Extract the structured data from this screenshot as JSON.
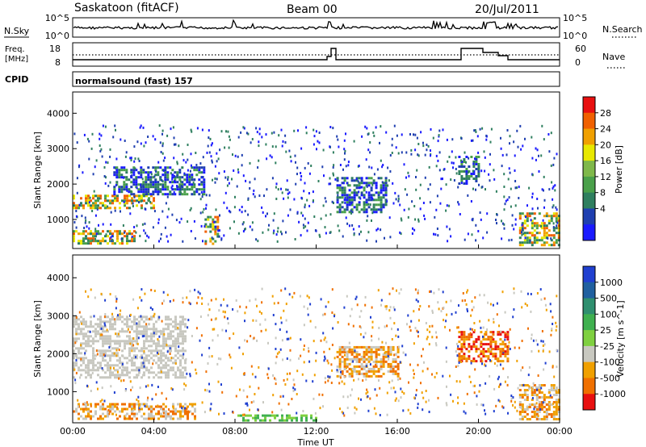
{
  "header": {
    "station": "Saskatoon (fitACF)",
    "beam": "Beam 00",
    "date": "20/Jul/2011"
  },
  "top_panels": {
    "nsky_label": "N.Sky",
    "nsky_ticks": [
      "10^5",
      "10^0"
    ],
    "nsearch_label": "N.Search",
    "nsearch_ticks": [
      "10^5",
      "10^0"
    ],
    "freq_label": "Freq.",
    "freq_unit": "[MHz]",
    "freq_ticks": [
      "18",
      "8"
    ],
    "nave_label": "Nave",
    "nave_ticks": [
      "60",
      "0"
    ],
    "cpid_label": "CPID",
    "cpid_value": "normalsound (fast) 157"
  },
  "chart_data": [
    {
      "type": "heatmap",
      "name": "power",
      "ylabel": "Slant Range [km]",
      "ylim": [
        180,
        4600
      ],
      "yticks": [
        "1000",
        "2000",
        "3000",
        "4000"
      ],
      "xticks": [
        "00:00",
        "04:00",
        "08:00",
        "12:00",
        "16:00",
        "20:00",
        "00:00"
      ],
      "xlim_hours": [
        0,
        24
      ],
      "colorbar": {
        "label": "Power [dB]",
        "ticks": [
          "4",
          "8",
          "12",
          "16",
          "20",
          "24",
          "28"
        ],
        "range": [
          0,
          30
        ],
        "colors": [
          "#1a1aff",
          "#1f3fb0",
          "#2f7f5f",
          "#4aa04a",
          "#7fb84a",
          "#e8e800",
          "#f0a000",
          "#f06000",
          "#e81010"
        ]
      },
      "echo_bands": [
        {
          "t": [
            0.0,
            4.0
          ],
          "range": [
            1300,
            1700
          ],
          "level": "high"
        },
        {
          "t": [
            2.0,
            6.5
          ],
          "range": [
            1700,
            2500
          ],
          "level": "mid"
        },
        {
          "t": [
            0.0,
            3.0
          ],
          "range": [
            300,
            700
          ],
          "level": "high"
        },
        {
          "t": [
            6.5,
            7.2
          ],
          "range": [
            300,
            1100
          ],
          "level": "high"
        },
        {
          "t": [
            13.0,
            15.5
          ],
          "range": [
            1200,
            2200
          ],
          "level": "mid"
        },
        {
          "t": [
            19.0,
            20.0
          ],
          "range": [
            2000,
            2800
          ],
          "level": "mid"
        },
        {
          "t": [
            22.0,
            24.0
          ],
          "range": [
            300,
            1200
          ],
          "level": "high"
        }
      ]
    },
    {
      "type": "heatmap",
      "name": "velocity",
      "ylabel": "Slant Range [km]",
      "ylim": [
        180,
        4600
      ],
      "yticks": [
        "1000",
        "2000",
        "3000",
        "4000"
      ],
      "xticks": [
        "00:00",
        "04:00",
        "08:00",
        "12:00",
        "16:00",
        "20:00",
        "00:00"
      ],
      "xlabel": "Time UT",
      "xlim_hours": [
        0,
        24
      ],
      "colorbar": {
        "label": "Velocity [m s^-1]",
        "ticks": [
          "1000",
          "500",
          "100",
          "25",
          "-25",
          "-100",
          "-500",
          "-1000"
        ],
        "colors": [
          "#2040d0",
          "#2060a0",
          "#2f8f6f",
          "#3fb04f",
          "#7fd040",
          "#c8c8c0",
          "#f0a000",
          "#f07000",
          "#e81010"
        ]
      },
      "echo_bands": [
        {
          "t": [
            0.0,
            5.5
          ],
          "range": [
            1400,
            3000
          ],
          "level": "ground"
        },
        {
          "t": [
            0.0,
            6.0
          ],
          "range": [
            300,
            700
          ],
          "level": "negative"
        },
        {
          "t": [
            8.0,
            12.0
          ],
          "range": [
            250,
            400
          ],
          "level": "positive"
        },
        {
          "t": [
            13.0,
            16.0
          ],
          "range": [
            1400,
            2200
          ],
          "level": "negative"
        },
        {
          "t": [
            19.0,
            21.5
          ],
          "range": [
            1800,
            2600
          ],
          "level": "strong-negative"
        },
        {
          "t": [
            22.0,
            24.0
          ],
          "range": [
            300,
            1200
          ],
          "level": "negative"
        }
      ]
    }
  ]
}
